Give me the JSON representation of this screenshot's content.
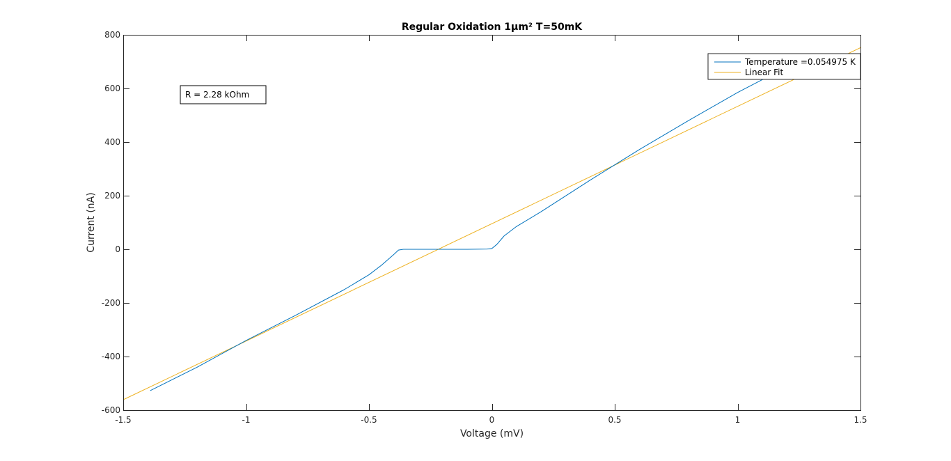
{
  "chart_data": {
    "type": "line",
    "title": "Regular Oxidation 1µm² T=50mK",
    "xlabel": "Voltage (mV)",
    "ylabel": "Current (nA)",
    "xlim": [
      -1.5,
      1.5
    ],
    "ylim": [
      -600,
      800
    ],
    "xticks": [
      -1.5,
      -1,
      -0.5,
      0,
      0.5,
      1,
      1.5
    ],
    "xtick_labels": [
      "-1.5",
      "-1",
      "-0.5",
      "0",
      "0.5",
      "1",
      "1.5"
    ],
    "yticks": [
      -600,
      -400,
      -200,
      0,
      200,
      400,
      600,
      800
    ],
    "ytick_labels": [
      "-600",
      "-400",
      "-200",
      "0",
      "200",
      "400",
      "600",
      "800"
    ],
    "grid": false,
    "legend_position": "top-right",
    "annotation": "R = 2.28 kOhm",
    "series": [
      {
        "name": "Temperature =0.054975 K",
        "color": "#0072BD",
        "x": [
          -1.39,
          -1.2,
          -1.0,
          -0.8,
          -0.6,
          -0.5,
          -0.45,
          -0.4,
          -0.38,
          -0.36,
          -0.3,
          -0.2,
          -0.1,
          -0.02,
          0.0,
          0.02,
          0.05,
          0.1,
          0.2,
          0.4,
          0.6,
          0.8,
          1.0,
          1.2,
          1.28
        ],
        "y": [
          -527,
          -440,
          -340,
          -247,
          -150,
          -95,
          -60,
          -20,
          -3,
          0,
          0,
          0,
          0,
          1,
          3,
          18,
          50,
          85,
          140,
          258,
          372,
          480,
          585,
          680,
          728
        ]
      },
      {
        "name": "Linear Fit",
        "color": "#EDB120",
        "x": [
          -1.5,
          1.5
        ],
        "y": [
          -561,
          752
        ]
      }
    ]
  }
}
